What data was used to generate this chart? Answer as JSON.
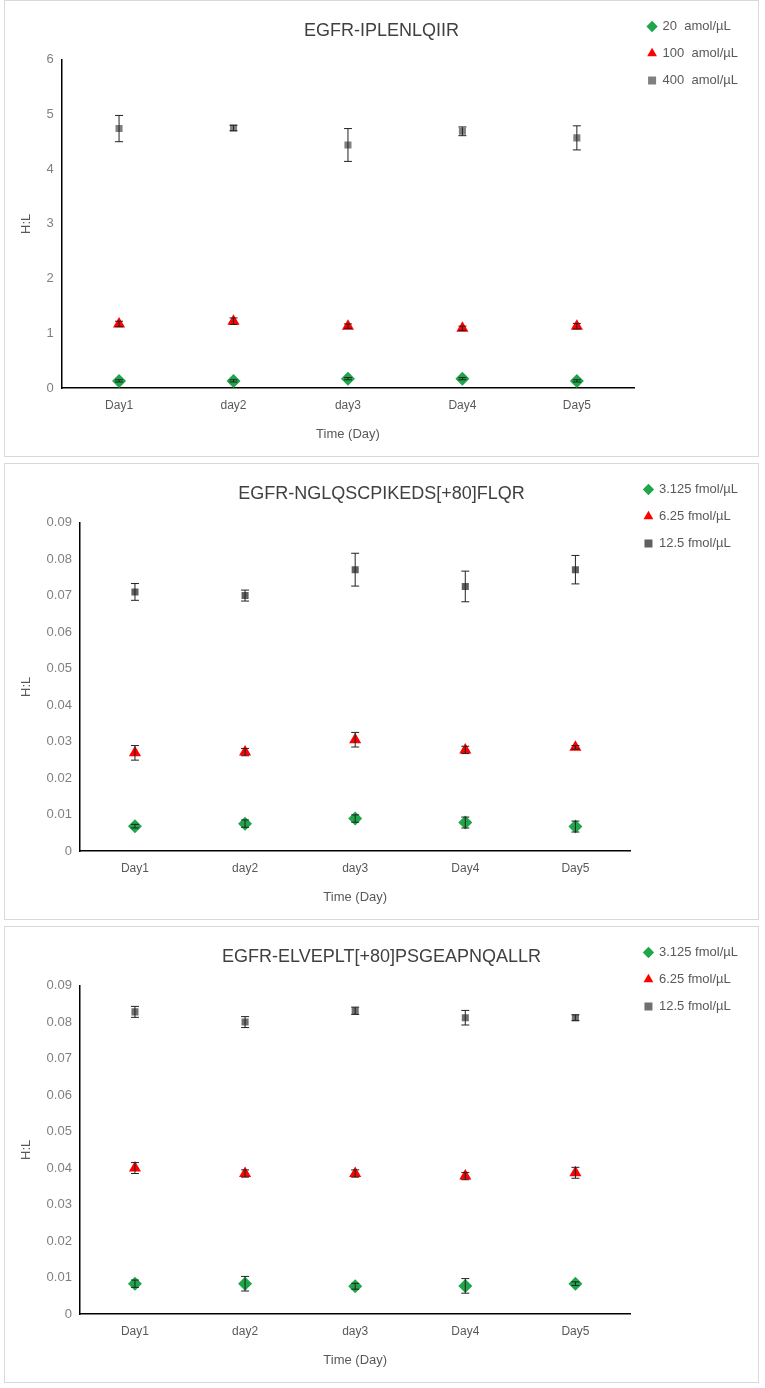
{
  "chart_data": [
    {
      "type": "scatter",
      "title": "EGFR-IPLENLQIIR",
      "xlabel": "Time (Day)",
      "ylabel": "H:L",
      "categories": [
        "Day1",
        "day2",
        "day3",
        "Day4",
        "Day5"
      ],
      "ylim": [
        0,
        6
      ],
      "yticks": [
        0,
        1,
        2,
        3,
        4,
        5,
        6
      ],
      "grid": false,
      "legend": "top right",
      "series": [
        {
          "name": "20  amol/µL",
          "color": "#1fa64a",
          "marker": "diamond",
          "values": [
            0.13,
            0.13,
            0.17,
            0.17,
            0.13
          ],
          "errors": [
            0.02,
            0.02,
            0.02,
            0.02,
            0.02
          ]
        },
        {
          "name": "100  amol/µL",
          "color": "#ff0000",
          "marker": "triangle",
          "values": [
            1.17,
            1.22,
            1.13,
            1.09,
            1.13
          ],
          "errors": [
            0.05,
            0.06,
            0.04,
            0.04,
            0.05
          ]
        },
        {
          "name": "400  amol/µL",
          "color": "#808080",
          "marker": "square",
          "values": [
            4.74,
            4.75,
            4.44,
            4.69,
            4.57
          ],
          "errors": [
            0.24,
            0.05,
            0.3,
            0.08,
            0.22
          ]
        }
      ]
    },
    {
      "type": "scatter",
      "title": "EGFR-NGLQSCPIKEDS[+80]FLQR",
      "xlabel": "Time (Day)",
      "ylabel": "H:L",
      "categories": [
        "Day1",
        "day2",
        "day3",
        "Day4",
        "Day5"
      ],
      "ylim": [
        0,
        0.09
      ],
      "yticks": [
        0,
        0.01,
        0.02,
        0.03,
        0.04,
        0.05,
        0.06,
        0.07,
        0.08,
        0.09
      ],
      "grid": false,
      "legend": "top right",
      "series": [
        {
          "name": "3.125 fmol/µL",
          "color": "#1fa64a",
          "marker": "diamond",
          "values": [
            0.0068,
            0.0075,
            0.0089,
            0.0078,
            0.0067
          ],
          "errors": [
            0.0005,
            0.001,
            0.001,
            0.0015,
            0.0015
          ]
        },
        {
          "name": "6.25 fmol/µL",
          "color": "#ff0000",
          "marker": "triangle",
          "values": [
            0.0269,
            0.0271,
            0.0305,
            0.0277,
            0.0284
          ],
          "errors": [
            0.002,
            0.001,
            0.002,
            0.001,
            0.0005
          ]
        },
        {
          "name": "12.5 fmol/µL",
          "color": "#606060",
          "marker": "square",
          "values": [
            0.071,
            0.07,
            0.0771,
            0.0725,
            0.0771
          ],
          "errors": [
            0.0023,
            0.0015,
            0.0045,
            0.0042,
            0.0039
          ]
        }
      ]
    },
    {
      "type": "scatter",
      "title": "EGFR-ELVEPLT[+80]PSGEAPNQALLR",
      "xlabel": "Time (Day)",
      "ylabel": "H:L",
      "categories": [
        "Day1",
        "day2",
        "day3",
        "Day4",
        "Day5"
      ],
      "ylim": [
        0,
        0.09
      ],
      "yticks": [
        0,
        0.01,
        0.02,
        0.03,
        0.04,
        0.05,
        0.06,
        0.07,
        0.08,
        0.09
      ],
      "grid": false,
      "legend": "top right",
      "series": [
        {
          "name": "3.125 fmol/µL",
          "color": "#1fa64a",
          "marker": "diamond",
          "values": [
            0.0083,
            0.0083,
            0.0076,
            0.0077,
            0.0083
          ],
          "errors": [
            0.001,
            0.002,
            0.0008,
            0.002,
            0.0005
          ]
        },
        {
          "name": "6.25 fmol/µL",
          "color": "#ff0000",
          "marker": "triangle",
          "values": [
            0.04,
            0.0385,
            0.0385,
            0.0378,
            0.0387
          ],
          "errors": [
            0.0015,
            0.001,
            0.001,
            0.001,
            0.0015
          ]
        },
        {
          "name": "12.5 fmol/µL",
          "color": "#707070",
          "marker": "square",
          "values": [
            0.0828,
            0.08,
            0.0831,
            0.0812,
            0.0812
          ],
          "errors": [
            0.0015,
            0.0015,
            0.001,
            0.002,
            0.0008
          ]
        }
      ]
    }
  ]
}
